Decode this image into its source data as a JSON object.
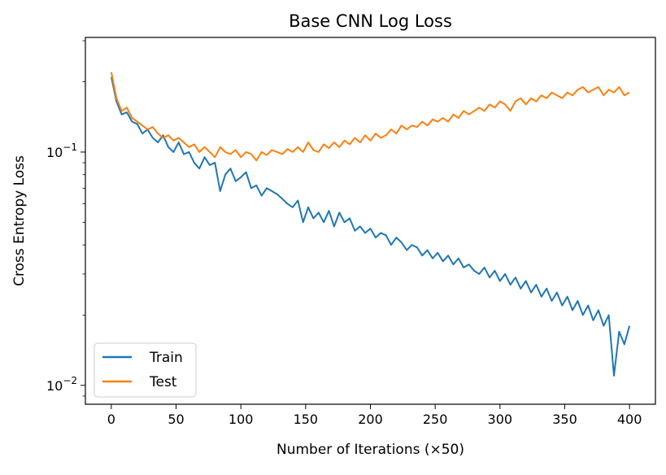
{
  "chart_data": {
    "type": "line",
    "title": "Base CNN Log Loss",
    "xlabel": "Number of Iterations (×50)",
    "ylabel": "Cross Entropy Loss",
    "xlim": [
      -20,
      420
    ],
    "ylim": [
      0.0083,
      0.31
    ],
    "yscale": "log",
    "xticks": [
      0,
      50,
      100,
      150,
      200,
      250,
      300,
      350,
      400
    ],
    "xtick_labels": [
      "0",
      "50",
      "100",
      "150",
      "200",
      "250",
      "300",
      "350",
      "400"
    ],
    "yticks": [
      0.1,
      0.01
    ],
    "ytick_labels": [
      {
        "base": "10",
        "exp": "−1"
      },
      {
        "base": "10",
        "exp": "−2"
      }
    ],
    "grid": false,
    "legend_position": "lower-left",
    "series": [
      {
        "name": "Train",
        "color": "#1f77b4",
        "x": [
          0,
          4,
          8,
          12,
          16,
          20,
          24,
          28,
          32,
          36,
          40,
          44,
          48,
          52,
          56,
          60,
          64,
          68,
          72,
          76,
          80,
          84,
          88,
          92,
          96,
          100,
          104,
          108,
          112,
          116,
          120,
          124,
          128,
          132,
          136,
          140,
          144,
          148,
          152,
          156,
          160,
          164,
          168,
          172,
          176,
          180,
          184,
          188,
          192,
          196,
          200,
          204,
          208,
          212,
          216,
          220,
          224,
          228,
          232,
          236,
          240,
          244,
          248,
          252,
          256,
          260,
          264,
          268,
          272,
          276,
          280,
          284,
          288,
          292,
          296,
          300,
          304,
          308,
          312,
          316,
          320,
          324,
          328,
          332,
          336,
          340,
          344,
          348,
          352,
          356,
          360,
          364,
          368,
          372,
          376,
          380,
          384,
          388,
          392,
          396,
          400
        ],
        "y": [
          0.21,
          0.165,
          0.145,
          0.148,
          0.135,
          0.132,
          0.12,
          0.125,
          0.115,
          0.11,
          0.118,
          0.105,
          0.1,
          0.11,
          0.098,
          0.1,
          0.09,
          0.085,
          0.095,
          0.088,
          0.09,
          0.068,
          0.08,
          0.085,
          0.075,
          0.078,
          0.082,
          0.07,
          0.072,
          0.065,
          0.07,
          0.068,
          0.066,
          0.063,
          0.06,
          0.058,
          0.062,
          0.05,
          0.058,
          0.052,
          0.055,
          0.05,
          0.056,
          0.048,
          0.055,
          0.05,
          0.052,
          0.046,
          0.048,
          0.045,
          0.047,
          0.043,
          0.045,
          0.044,
          0.04,
          0.043,
          0.041,
          0.038,
          0.04,
          0.039,
          0.036,
          0.038,
          0.035,
          0.037,
          0.034,
          0.036,
          0.033,
          0.035,
          0.032,
          0.033,
          0.031,
          0.03,
          0.032,
          0.029,
          0.031,
          0.028,
          0.03,
          0.027,
          0.029,
          0.026,
          0.028,
          0.025,
          0.027,
          0.024,
          0.026,
          0.023,
          0.025,
          0.022,
          0.024,
          0.021,
          0.023,
          0.02,
          0.022,
          0.019,
          0.021,
          0.018,
          0.02,
          0.011,
          0.017,
          0.015,
          0.018
        ]
      },
      {
        "name": "Test",
        "color": "#ff7f0e",
        "x": [
          0,
          4,
          8,
          12,
          16,
          20,
          24,
          28,
          32,
          36,
          40,
          44,
          48,
          52,
          56,
          60,
          64,
          68,
          72,
          76,
          80,
          84,
          88,
          92,
          96,
          100,
          104,
          108,
          112,
          116,
          120,
          124,
          128,
          132,
          136,
          140,
          144,
          148,
          152,
          156,
          160,
          164,
          168,
          172,
          176,
          180,
          184,
          188,
          192,
          196,
          200,
          204,
          208,
          212,
          216,
          220,
          224,
          228,
          232,
          236,
          240,
          244,
          248,
          252,
          256,
          260,
          264,
          268,
          272,
          276,
          280,
          284,
          288,
          292,
          296,
          300,
          304,
          308,
          312,
          316,
          320,
          324,
          328,
          332,
          336,
          340,
          344,
          348,
          352,
          356,
          360,
          364,
          368,
          372,
          376,
          380,
          384,
          388,
          392,
          396,
          400
        ],
        "y": [
          0.22,
          0.17,
          0.15,
          0.155,
          0.14,
          0.135,
          0.13,
          0.125,
          0.128,
          0.12,
          0.115,
          0.118,
          0.112,
          0.115,
          0.11,
          0.105,
          0.108,
          0.1,
          0.105,
          0.1,
          0.095,
          0.105,
          0.1,
          0.098,
          0.102,
          0.095,
          0.1,
          0.098,
          0.092,
          0.1,
          0.097,
          0.102,
          0.1,
          0.098,
          0.103,
          0.1,
          0.105,
          0.1,
          0.11,
          0.102,
          0.1,
          0.108,
          0.104,
          0.11,
          0.105,
          0.112,
          0.108,
          0.115,
          0.11,
          0.118,
          0.112,
          0.12,
          0.115,
          0.118,
          0.125,
          0.12,
          0.13,
          0.125,
          0.13,
          0.128,
          0.135,
          0.13,
          0.138,
          0.135,
          0.14,
          0.135,
          0.145,
          0.14,
          0.15,
          0.145,
          0.15,
          0.155,
          0.15,
          0.16,
          0.155,
          0.165,
          0.16,
          0.15,
          0.165,
          0.17,
          0.16,
          0.17,
          0.165,
          0.175,
          0.17,
          0.18,
          0.175,
          0.17,
          0.18,
          0.175,
          0.185,
          0.19,
          0.18,
          0.185,
          0.19,
          0.175,
          0.185,
          0.18,
          0.19,
          0.175,
          0.18
        ]
      }
    ]
  }
}
